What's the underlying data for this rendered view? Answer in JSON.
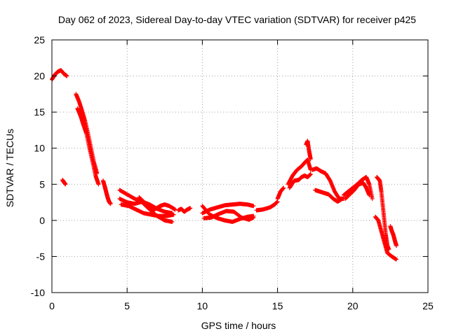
{
  "chart_data": {
    "type": "scatter",
    "title": "Day 062 of 2023, Sidereal Day-to-day VTEC variation (SDTVAR) for receiver p425",
    "xlabel": "GPS time / hours",
    "ylabel": "SDTVAR / TECUs",
    "xlim": [
      0,
      25
    ],
    "ylim": [
      -10,
      25
    ],
    "xticks": [
      0,
      5,
      10,
      15,
      20,
      25
    ],
    "yticks": [
      -10,
      -5,
      0,
      5,
      10,
      15,
      20,
      25
    ],
    "xtick_labels": [
      "0",
      "5",
      "10",
      "15",
      "20",
      "25"
    ],
    "ytick_labels": [
      "-10",
      "-5",
      "0",
      "5",
      "10",
      "15",
      "20",
      "25"
    ],
    "grid": true,
    "marker": "+",
    "color": "#ff0000",
    "series": [
      {
        "name": "SDTVAR",
        "tracks": [
          [
            [
              0,
              19.5
            ],
            [
              0.2,
              20.2
            ],
            [
              0.4,
              20.6
            ],
            [
              0.6,
              20.8
            ],
            [
              0.8,
              20.3
            ],
            [
              1.0,
              20.0
            ]
          ],
          [
            [
              0.7,
              5.6
            ],
            [
              0.8,
              5.3
            ],
            [
              0.9,
              5.0
            ]
          ],
          [
            [
              1.6,
              17.5
            ],
            [
              1.8,
              16.5
            ],
            [
              2.0,
              15.2
            ],
            [
              2.2,
              13.8
            ],
            [
              2.4,
              12.0
            ],
            [
              2.6,
              10.0
            ],
            [
              2.8,
              8.0
            ],
            [
              3.0,
              6.5
            ]
          ],
          [
            [
              1.7,
              15.5
            ],
            [
              1.9,
              14.5
            ],
            [
              2.1,
              13.2
            ],
            [
              2.3,
              12.0
            ],
            [
              2.5,
              10.0
            ],
            [
              2.7,
              8.2
            ],
            [
              2.9,
              6.2
            ],
            [
              3.1,
              5.0
            ]
          ],
          [
            [
              3.4,
              5.5
            ],
            [
              3.5,
              4.8
            ],
            [
              3.6,
              4.0
            ],
            [
              3.7,
              3.2
            ],
            [
              3.8,
              2.6
            ],
            [
              3.9,
              2.3
            ]
          ],
          [
            [
              4.5,
              4.2
            ],
            [
              5.0,
              3.6
            ],
            [
              5.5,
              3.0
            ],
            [
              6.0,
              2.5
            ],
            [
              6.5,
              1.5
            ],
            [
              7.0,
              0.6
            ],
            [
              7.5,
              0.0
            ],
            [
              8.0,
              -0.2
            ]
          ],
          [
            [
              4.5,
              3.0
            ],
            [
              5.0,
              2.5
            ],
            [
              5.5,
              2.3
            ],
            [
              6.0,
              2.6
            ],
            [
              6.5,
              2.2
            ],
            [
              7.0,
              1.6
            ],
            [
              7.5,
              1.2
            ],
            [
              8.0,
              1.0
            ]
          ],
          [
            [
              4.6,
              2.2
            ],
            [
              5.1,
              2.0
            ],
            [
              5.6,
              1.5
            ],
            [
              6.1,
              1.0
            ],
            [
              6.6,
              0.8
            ],
            [
              7.1,
              0.6
            ],
            [
              7.6,
              0.6
            ],
            [
              8.1,
              0.8
            ]
          ],
          [
            [
              5.8,
              3.2
            ],
            [
              6.3,
              2.2
            ],
            [
              6.8,
              1.5
            ],
            [
              7.2,
              2.0
            ],
            [
              7.5,
              2.2
            ],
            [
              7.8,
              2.0
            ],
            [
              8.2,
              1.5
            ]
          ],
          [
            [
              8.4,
              1.4
            ],
            [
              8.6,
              1.6
            ],
            [
              8.8,
              1.2
            ],
            [
              9.0,
              1.5
            ],
            [
              9.2,
              1.7
            ]
          ],
          [
            [
              10.0,
              2.0
            ],
            [
              10.5,
              0.8
            ],
            [
              11.0,
              0.3
            ],
            [
              11.5,
              0.0
            ],
            [
              12.0,
              -0.2
            ],
            [
              12.5,
              0.2
            ],
            [
              13.0,
              0.5
            ],
            [
              13.4,
              0.6
            ]
          ],
          [
            [
              10.0,
              1.0
            ],
            [
              10.5,
              1.5
            ],
            [
              11.0,
              1.8
            ],
            [
              11.5,
              2.1
            ],
            [
              12.0,
              2.2
            ],
            [
              12.5,
              2.3
            ],
            [
              13.0,
              2.2
            ],
            [
              13.4,
              2.0
            ]
          ],
          [
            [
              10.1,
              0.3
            ],
            [
              10.6,
              0.4
            ],
            [
              11.1,
              0.9
            ],
            [
              11.6,
              1.3
            ],
            [
              12.1,
              1.2
            ],
            [
              12.6,
              0.4
            ],
            [
              13.1,
              0.1
            ],
            [
              13.4,
              0.4
            ]
          ],
          [
            [
              13.6,
              1.4
            ],
            [
              14.0,
              1.5
            ],
            [
              14.5,
              1.8
            ],
            [
              14.8,
              2.2
            ],
            [
              15.0,
              2.6
            ]
          ],
          [
            [
              15.0,
              3.0
            ],
            [
              15.2,
              4.0
            ],
            [
              15.4,
              4.5
            ]
          ],
          [
            [
              15.7,
              5.0
            ],
            [
              16.0,
              6.2
            ],
            [
              16.3,
              7.0
            ],
            [
              16.6,
              7.5
            ],
            [
              16.8,
              8.0
            ],
            [
              17.0,
              8.4
            ],
            [
              17.2,
              7.0
            ]
          ],
          [
            [
              15.8,
              4.5
            ],
            [
              16.1,
              5.5
            ],
            [
              16.4,
              5.6
            ],
            [
              16.6,
              6.0
            ],
            [
              16.8,
              6.2
            ],
            [
              17.0,
              6.0
            ],
            [
              17.2,
              6.4
            ]
          ],
          [
            [
              16.9,
              10.5
            ],
            [
              17.0,
              11.0
            ],
            [
              17.1,
              9.6
            ],
            [
              17.2,
              8.5
            ]
          ],
          [
            [
              17.3,
              7.0
            ],
            [
              17.6,
              7.2
            ],
            [
              17.9,
              6.8
            ],
            [
              18.2,
              6.5
            ],
            [
              18.5,
              5.5
            ],
            [
              18.8,
              4.0
            ],
            [
              19.1,
              3.0
            ],
            [
              19.4,
              3.0
            ]
          ],
          [
            [
              17.5,
              4.2
            ],
            [
              17.8,
              4.0
            ],
            [
              18.1,
              3.8
            ],
            [
              18.4,
              3.6
            ],
            [
              18.7,
              3.0
            ],
            [
              19.0,
              2.6
            ],
            [
              19.3,
              3.0
            ]
          ],
          [
            [
              19.4,
              3.5
            ],
            [
              19.7,
              4.0
            ],
            [
              20.0,
              4.5
            ],
            [
              20.3,
              5.0
            ],
            [
              20.6,
              5.6
            ],
            [
              20.9,
              6.0
            ],
            [
              21.1,
              5.0
            ],
            [
              21.3,
              3.0
            ]
          ],
          [
            [
              19.5,
              3.0
            ],
            [
              19.8,
              3.6
            ],
            [
              20.1,
              4.2
            ],
            [
              20.4,
              5.0
            ],
            [
              20.7,
              5.2
            ],
            [
              20.9,
              4.5
            ],
            [
              21.1,
              3.5
            ]
          ],
          [
            [
              21.6,
              6.0
            ],
            [
              21.8,
              5.5
            ],
            [
              21.9,
              4.0
            ],
            [
              22.0,
              2.0
            ],
            [
              22.1,
              0.0
            ],
            [
              22.2,
              -2.0
            ],
            [
              22.3,
              -3.5
            ],
            [
              22.4,
              -4.0
            ]
          ],
          [
            [
              21.5,
              0.5
            ],
            [
              21.7,
              0.0
            ],
            [
              21.9,
              -1.5
            ],
            [
              22.1,
              -3.0
            ],
            [
              22.3,
              -4.5
            ],
            [
              22.6,
              -5.0
            ],
            [
              22.9,
              -5.4
            ]
          ],
          [
            [
              22.5,
              -0.8
            ],
            [
              22.6,
              -1.5
            ],
            [
              22.7,
              -2.0
            ],
            [
              22.8,
              -2.8
            ],
            [
              22.9,
              -3.5
            ]
          ]
        ]
      }
    ]
  }
}
